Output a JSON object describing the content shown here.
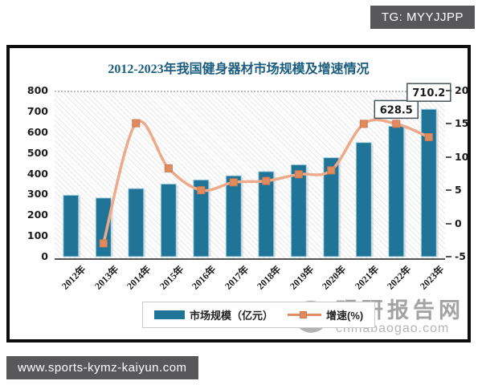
{
  "badges": {
    "top_right": "TG: MYYJJPP",
    "bottom_left": "www.sports-kymz-kaiyun.com"
  },
  "watermark": {
    "name": "观研报告网",
    "domain": "chinabaogao.com"
  },
  "chart_data": {
    "type": "bar",
    "combo": "bar+line",
    "title": "2012-2023年我国健身器材市场规模及增速情况",
    "categories": [
      "2012年",
      "2013年",
      "2014年",
      "2015年",
      "2016年",
      "2017年",
      "2018年",
      "2019年",
      "2020年",
      "2021年",
      "2022年",
      "2023年"
    ],
    "series": [
      {
        "name": "市场规模（亿元）",
        "type": "bar",
        "axis": "left",
        "color": "#1f7498",
        "values": [
          296,
          283,
          328,
          350,
          370,
          390,
          410,
          443,
          477,
          550,
          628.5,
          710.2
        ]
      },
      {
        "name": "增速(%)",
        "type": "line",
        "axis": "right",
        "color": "#ecaa8a",
        "marker_color": "#e08a5f",
        "marker_border": "#cf7950",
        "values": [
          null,
          -3,
          15.1,
          8.3,
          5,
          6.2,
          6.4,
          7.4,
          8,
          15,
          15,
          13
        ]
      }
    ],
    "left_axis": {
      "min": 0,
      "max": 800,
      "step": 100,
      "ticks": [
        "800",
        "700",
        "600",
        "500",
        "400",
        "300",
        "200",
        "100",
        "0"
      ]
    },
    "right_axis": {
      "min": -5,
      "max": 20,
      "step": 5,
      "ticks": [
        "20",
        "15",
        "10",
        "5",
        "0",
        "-5"
      ]
    },
    "data_labels": [
      {
        "category_index": 10,
        "text": "628.5"
      },
      {
        "category_index": 11,
        "text": "710.2"
      }
    ],
    "legend_position": "bottom",
    "grid": "top dotted line only, hatched plot background"
  }
}
